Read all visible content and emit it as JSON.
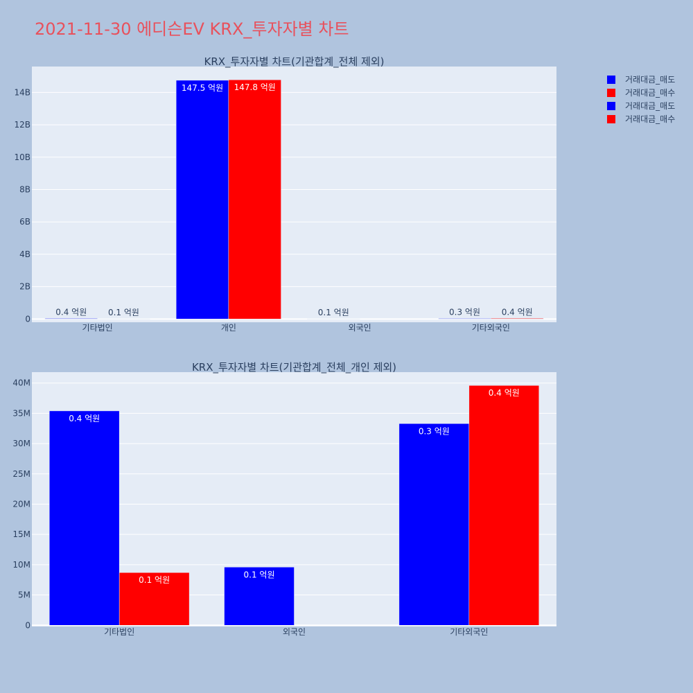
{
  "page_title": "2021-11-30 에디슨EV KRX_투자자별 차트",
  "colors": {
    "background": "#b0c4de",
    "plot_bg": "#e5ecf6",
    "title": "#e8515c",
    "sell": "#0000ff",
    "buy": "#ff0000"
  },
  "legend": [
    {
      "label": "거래대금_매도",
      "color": "#0000ff"
    },
    {
      "label": "거래대금_매수",
      "color": "#ff0000"
    },
    {
      "label": "거래대금_매도",
      "color": "#0000ff"
    },
    {
      "label": "거래대금_매수",
      "color": "#ff0000"
    }
  ],
  "chart_data": [
    {
      "type": "bar",
      "title": "KRX_투자자별 차트(기관합계_전체 제외)",
      "categories": [
        "기타법인",
        "개인",
        "외국인",
        "기타외국인"
      ],
      "yticks": [
        {
          "value": 0,
          "label": "0"
        },
        {
          "value": 2000000000,
          "label": "2B"
        },
        {
          "value": 4000000000,
          "label": "4B"
        },
        {
          "value": 6000000000,
          "label": "6B"
        },
        {
          "value": 8000000000,
          "label": "8B"
        },
        {
          "value": 10000000000,
          "label": "10B"
        },
        {
          "value": 12000000000,
          "label": "12B"
        },
        {
          "value": 14000000000,
          "label": "14B"
        }
      ],
      "ylim": [
        -200000000,
        15600000000
      ],
      "series": [
        {
          "name": "거래대금_매도",
          "color": "#0000ff",
          "values": [
            35000000,
            14750000000,
            9500000,
            33000000
          ],
          "labels": [
            "0.4 억원",
            "147.5 억원",
            "0.1 억원",
            "0.3 억원"
          ]
        },
        {
          "name": "거래대금_매수",
          "color": "#ff0000",
          "values": [
            8500000,
            14780000000,
            0,
            39500000
          ],
          "labels": [
            "0.1 억원",
            "147.8 억원",
            "",
            "0.4 억원"
          ]
        }
      ]
    },
    {
      "type": "bar",
      "title": "KRX_투자자별 차트(기관합계_전체_개인 제외)",
      "categories": [
        "기타법인",
        "외국인",
        "기타외국인"
      ],
      "yticks": [
        {
          "value": 0,
          "label": "0"
        },
        {
          "value": 5000000,
          "label": "5M"
        },
        {
          "value": 10000000,
          "label": "10M"
        },
        {
          "value": 15000000,
          "label": "15M"
        },
        {
          "value": 20000000,
          "label": "20M"
        },
        {
          "value": 25000000,
          "label": "25M"
        },
        {
          "value": 30000000,
          "label": "30M"
        },
        {
          "value": 35000000,
          "label": "35M"
        },
        {
          "value": 40000000,
          "label": "40M"
        }
      ],
      "ylim": [
        -200000,
        41800000
      ],
      "series": [
        {
          "name": "거래대금_매도",
          "color": "#0000ff",
          "values": [
            35400000,
            9600000,
            33300000
          ],
          "labels": [
            "0.4 억원",
            "0.1 억원",
            "0.3 억원"
          ]
        },
        {
          "name": "거래대금_매수",
          "color": "#ff0000",
          "values": [
            8700000,
            0,
            39600000
          ],
          "labels": [
            "0.1 억원",
            "",
            "0.4 억원"
          ]
        }
      ]
    }
  ]
}
